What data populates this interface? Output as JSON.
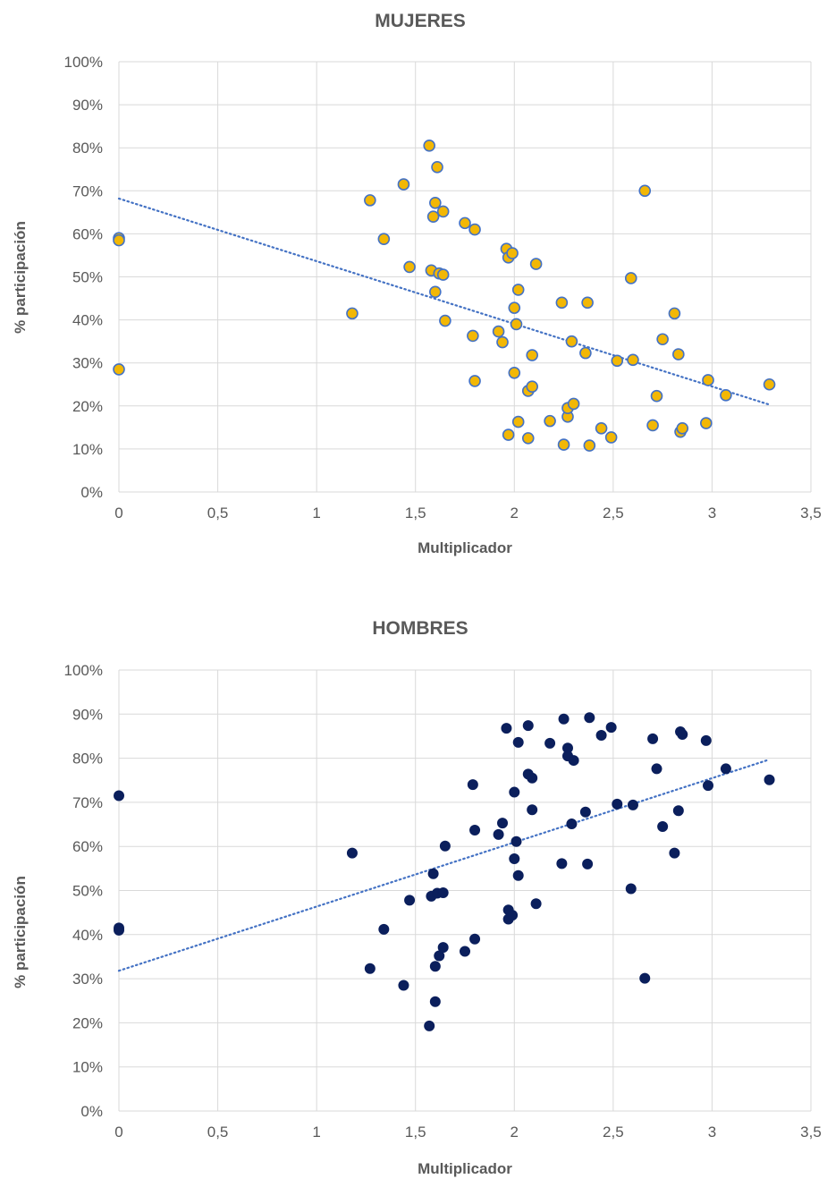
{
  "chart_data": [
    {
      "type": "scatter",
      "title": "MUJERES",
      "xlabel": "Multiplicador",
      "ylabel": "% participación",
      "xlim": [
        0,
        3.5
      ],
      "ylim": [
        0,
        100
      ],
      "x_ticks": [
        "0",
        "0,5",
        "1",
        "1,5",
        "2",
        "2,5",
        "3",
        "3,5"
      ],
      "y_ticks": [
        "0%",
        "10%",
        "20%",
        "30%",
        "40%",
        "50%",
        "60%",
        "70%",
        "80%",
        "90%",
        "100%"
      ],
      "grid": true,
      "trendline": {
        "style": "dotted",
        "x": [
          0,
          3.29
        ],
        "y": [
          68.2,
          20.3
        ]
      },
      "colors": {
        "marker_fill": "#F2B705",
        "marker_edge": "#4472C4",
        "trendline": "#4472C4"
      },
      "series": [
        {
          "x": [
            0,
            0,
            0,
            1.18,
            1.27,
            1.34,
            1.44,
            1.47,
            1.57,
            1.58,
            1.59,
            1.6,
            1.6,
            1.61,
            1.62,
            1.64,
            1.64,
            1.65,
            1.75,
            1.79,
            1.8,
            1.8,
            1.92,
            1.94,
            1.96,
            1.97,
            1.97,
            1.99,
            2.0,
            2.0,
            2.01,
            2.02,
            2.02,
            2.07,
            2.07,
            2.09,
            2.09,
            2.11,
            2.18,
            2.24,
            2.25,
            2.27,
            2.27,
            2.29,
            2.3,
            2.36,
            2.37,
            2.38,
            2.44,
            2.49,
            2.52,
            2.59,
            2.6,
            2.66,
            2.7,
            2.72,
            2.75,
            2.81,
            2.83,
            2.84,
            2.85,
            2.97,
            2.98,
            3.07,
            3.29
          ],
          "y": [
            59.0,
            58.5,
            28.5,
            41.5,
            67.8,
            58.8,
            71.5,
            52.3,
            80.5,
            51.5,
            64.0,
            46.5,
            67.2,
            75.5,
            50.8,
            65.2,
            50.5,
            39.8,
            62.5,
            36.3,
            61.0,
            25.8,
            37.3,
            34.8,
            56.5,
            54.5,
            13.3,
            55.5,
            42.8,
            27.7,
            39.0,
            47.0,
            16.3,
            23.5,
            12.5,
            24.5,
            31.8,
            53.0,
            16.5,
            44.0,
            11.0,
            17.5,
            19.5,
            35.0,
            20.5,
            32.3,
            44.0,
            10.8,
            14.8,
            12.7,
            30.5,
            49.7,
            30.7,
            70.0,
            15.5,
            22.3,
            35.5,
            41.5,
            32.0,
            14.0,
            14.8,
            16.0,
            26.0,
            22.5,
            25.0
          ]
        }
      ]
    },
    {
      "type": "scatter",
      "title": "HOMBRES",
      "xlabel": "Multiplicador",
      "ylabel": "% participación",
      "xlim": [
        0,
        3.5
      ],
      "ylim": [
        0,
        100
      ],
      "x_ticks": [
        "0",
        "0,5",
        "1",
        "1,5",
        "2",
        "2,5",
        "3",
        "3,5"
      ],
      "y_ticks": [
        "0%",
        "10%",
        "20%",
        "30%",
        "40%",
        "50%",
        "60%",
        "70%",
        "80%",
        "90%",
        "100%"
      ],
      "grid": true,
      "trendline": {
        "style": "dotted",
        "x": [
          0,
          3.29
        ],
        "y": [
          31.8,
          79.7
        ]
      },
      "colors": {
        "marker_fill": "#0B1F5C",
        "marker_edge": "#0B1F5C",
        "trendline": "#4472C4"
      },
      "series": [
        {
          "x": [
            0,
            0,
            0,
            1.18,
            1.27,
            1.34,
            1.44,
            1.47,
            1.57,
            1.58,
            1.59,
            1.6,
            1.6,
            1.61,
            1.62,
            1.64,
            1.64,
            1.65,
            1.75,
            1.79,
            1.8,
            1.8,
            1.92,
            1.94,
            1.96,
            1.97,
            1.97,
            1.99,
            2.0,
            2.0,
            2.01,
            2.02,
            2.02,
            2.07,
            2.07,
            2.09,
            2.09,
            2.11,
            2.18,
            2.24,
            2.25,
            2.27,
            2.27,
            2.29,
            2.3,
            2.36,
            2.37,
            2.38,
            2.44,
            2.49,
            2.52,
            2.59,
            2.6,
            2.66,
            2.7,
            2.72,
            2.75,
            2.81,
            2.83,
            2.84,
            2.85,
            2.97,
            2.98,
            3.07,
            3.29
          ],
          "y": [
            71.5,
            41.5,
            41.0,
            58.5,
            32.3,
            41.2,
            28.5,
            47.8,
            19.3,
            48.7,
            53.8,
            32.8,
            24.8,
            49.4,
            35.2,
            49.5,
            37.1,
            60.1,
            36.2,
            74.0,
            63.7,
            39.0,
            62.7,
            65.3,
            86.8,
            43.5,
            45.6,
            44.4,
            57.2,
            72.3,
            61.1,
            83.6,
            53.4,
            76.4,
            87.4,
            75.5,
            68.3,
            47.0,
            83.4,
            56.1,
            88.9,
            82.3,
            80.5,
            65.1,
            79.5,
            67.8,
            56.0,
            89.2,
            85.2,
            87.0,
            69.6,
            50.4,
            69.4,
            30.1,
            84.4,
            77.6,
            64.5,
            58.5,
            68.1,
            86.0,
            85.4,
            84.0,
            73.8,
            77.6,
            75.1
          ]
        }
      ]
    }
  ]
}
